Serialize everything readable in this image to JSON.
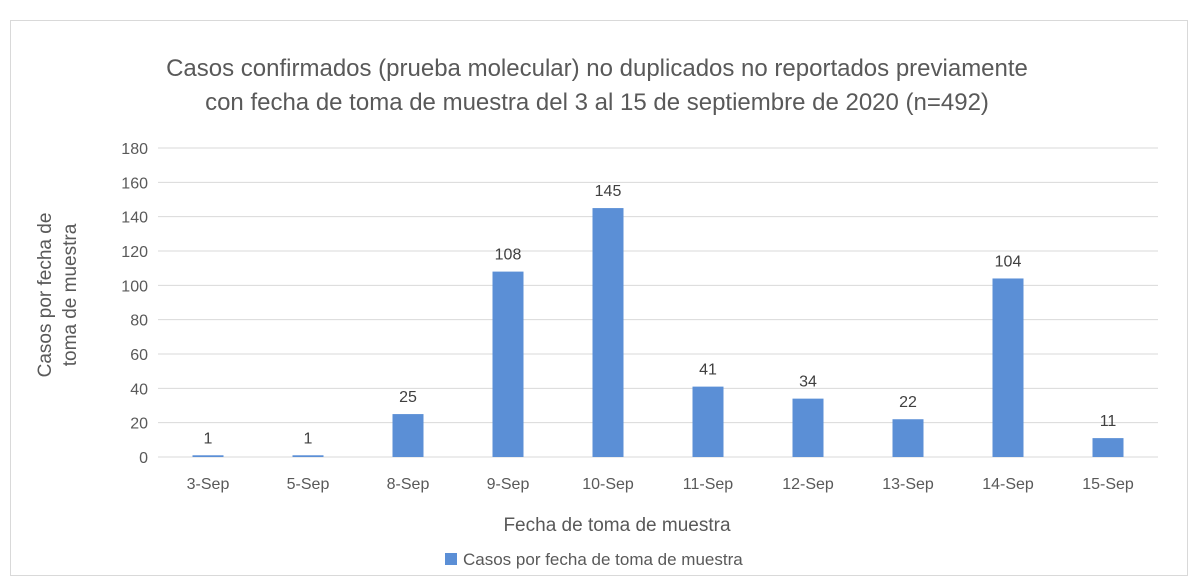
{
  "chart_data": {
    "type": "bar",
    "title_lines": [
      "Casos confirmados (prueba molecular) no duplicados no reportados previamente",
      "con fecha de toma de muestra del 3 al 15 de septiembre de 2020 (n=492)"
    ],
    "categories": [
      "3-Sep",
      "5-Sep",
      "8-Sep",
      "9-Sep",
      "10-Sep",
      "11-Sep",
      "12-Sep",
      "13-Sep",
      "14-Sep",
      "15-Sep"
    ],
    "series": [
      {
        "name": "Casos por fecha de toma de muestra",
        "values": [
          1,
          1,
          25,
          108,
          145,
          41,
          34,
          22,
          104,
          11
        ],
        "color": "#5b8fd6"
      }
    ],
    "xlabel": "Fecha de toma de muestra",
    "ylabel_lines": [
      "Casos por fecha de",
      "toma de muestra"
    ],
    "ylim": [
      0,
      180
    ],
    "yticks": [
      0,
      20,
      40,
      60,
      80,
      100,
      120,
      140,
      160,
      180
    ],
    "grid": true,
    "legend_position": "bottom"
  }
}
